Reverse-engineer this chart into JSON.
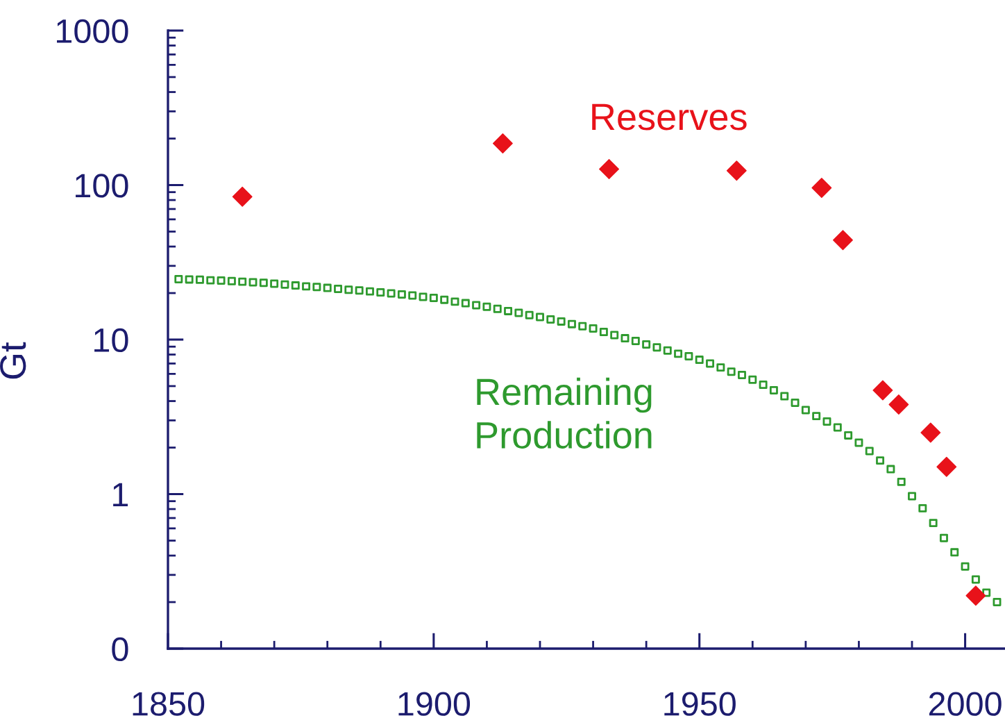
{
  "chart_data": {
    "type": "scatter",
    "ylabel": "Gt",
    "log": "y",
    "xlim": [
      1850,
      2007.5
    ],
    "xticks": [
      1850,
      1900,
      1950,
      2000
    ],
    "ylim": [
      0.1,
      1000
    ],
    "yticks": [
      {
        "value": 0.1,
        "label": "0"
      },
      1,
      10,
      100,
      1000
    ],
    "series": [
      {
        "name": "Reserves",
        "color": "#e8121a",
        "marker": "diamond",
        "x": [
          1864,
          1913,
          1933,
          1957,
          1973,
          1977,
          1984.5,
          1987.5,
          1993.5,
          1996.5,
          2002
        ],
        "values": [
          84,
          186,
          127,
          124,
          96,
          44,
          4.7,
          3.8,
          2.5,
          1.5,
          0.22
        ]
      },
      {
        "name": "Remaining\nProduction",
        "color": "#2e9a2e",
        "marker": "square",
        "x": [
          1852,
          1854,
          1856,
          1858,
          1860,
          1862,
          1864,
          1866,
          1868,
          1870,
          1872,
          1874,
          1876,
          1878,
          1880,
          1882,
          1884,
          1886,
          1888,
          1890,
          1892,
          1894,
          1896,
          1898,
          1900,
          1902,
          1904,
          1906,
          1908,
          1910,
          1912,
          1914,
          1916,
          1918,
          1920,
          1922,
          1924,
          1926,
          1928,
          1930,
          1932,
          1934,
          1936,
          1938,
          1940,
          1942,
          1944,
          1946,
          1948,
          1950,
          1952,
          1954,
          1956,
          1958,
          1960,
          1962,
          1964,
          1966,
          1968,
          1970,
          1972,
          1974,
          1976,
          1978,
          1980,
          1982,
          1984,
          1986,
          1988,
          1990,
          1992,
          1994,
          1996,
          1998,
          2000,
          2002,
          2004,
          2006
        ],
        "values": [
          24.6,
          24.5,
          24.4,
          24.2,
          24.1,
          23.9,
          23.7,
          23.5,
          23.3,
          23.0,
          22.7,
          22.4,
          22.1,
          21.9,
          21.6,
          21.3,
          21.0,
          20.8,
          20.5,
          20.2,
          19.9,
          19.6,
          19.3,
          18.9,
          18.6,
          18.1,
          17.6,
          17.2,
          16.7,
          16.3,
          15.8,
          15.3,
          14.9,
          14.4,
          14.0,
          13.5,
          13.1,
          12.6,
          12.2,
          11.8,
          11.2,
          10.7,
          10.2,
          9.8,
          9.3,
          8.9,
          8.5,
          8.1,
          7.8,
          7.4,
          7.0,
          6.6,
          6.2,
          5.9,
          5.5,
          5.1,
          4.7,
          4.3,
          3.9,
          3.5,
          3.2,
          2.95,
          2.7,
          2.4,
          2.15,
          1.9,
          1.65,
          1.45,
          1.2,
          0.97,
          0.81,
          0.65,
          0.52,
          0.42,
          0.34,
          0.28,
          0.23,
          0.2
        ]
      }
    ]
  }
}
